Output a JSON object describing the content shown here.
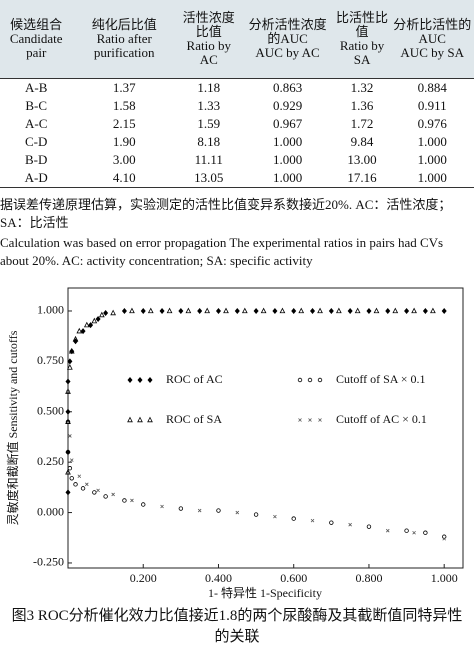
{
  "table": {
    "header": [
      {
        "zh": "候选组合",
        "en": "Candidate pair"
      },
      {
        "zh": "纯化后比值",
        "en": "Ratio after purification"
      },
      {
        "zh": "活性浓度比值",
        "en": "Ratio by AC"
      },
      {
        "zh": "分析活性浓度的AUC",
        "en": "AUC by AC"
      },
      {
        "zh": "比活性比值",
        "en": "Ratio by SA"
      },
      {
        "zh": "分析比活性的AUC",
        "en": "AUC by SA"
      }
    ],
    "rows": [
      [
        "A-B",
        "1.37",
        "1.18",
        "0.863",
        "1.32",
        "0.884"
      ],
      [
        "B-C",
        "1.58",
        "1.33",
        "0.929",
        "1.36",
        "0.911"
      ],
      [
        "A-C",
        "2.15",
        "1.59",
        "0.967",
        "1.72",
        "0.976"
      ],
      [
        "C-D",
        "1.90",
        "8.18",
        "1.000",
        "9.84",
        "1.000"
      ],
      [
        "B-D",
        "3.00",
        "11.11",
        "1.000",
        "13.00",
        "1.000"
      ],
      [
        "A-D",
        "4.10",
        "13.05",
        "1.000",
        "17.16",
        "1.000"
      ]
    ]
  },
  "footnote": [
    "据误差传递原理估算，实验测定的活性比值变异系数接近20%. AC：活性浓度；SA：比活性",
    "Calculation was based on error propagation The experimental ratios in pairs had CVs about 20%. AC: activity concentration; SA: specific activity"
  ],
  "chart_data": {
    "type": "scatter",
    "x_label": "1- 特异性 1-Specificity",
    "y_label": "灵敏度和截断值 Sensitivity and cutoffs",
    "xlim": [
      0,
      1.05
    ],
    "ylim": [
      -0.275,
      1.114
    ],
    "xticks": [
      {
        "value": 0.2,
        "label": "0.200"
      },
      {
        "value": 0.4,
        "label": "0.400"
      },
      {
        "value": 0.6,
        "label": "0.600"
      },
      {
        "value": 0.8,
        "label": "0.800"
      },
      {
        "value": 1,
        "label": "1.000"
      }
    ],
    "yticks": [
      {
        "value": -0.25,
        "label": "-0.250"
      },
      {
        "value": 0,
        "label": "0.000"
      },
      {
        "value": 0.25,
        "label": "0.250"
      },
      {
        "value": 0.5,
        "label": "0.500"
      },
      {
        "value": 0.75,
        "label": "0.750"
      },
      {
        "value": 1,
        "label": "1.000"
      }
    ],
    "legend": "inside-center",
    "series": [
      {
        "name": "ROC of AC",
        "color": "#000000",
        "marker": "diamond-filled",
        "x": [
          0,
          0,
          0,
          0,
          0.005,
          0.01,
          0.02,
          0.04,
          0.06,
          0.08,
          0.1,
          0.15,
          0.2,
          0.25,
          0.3,
          0.35,
          0.4,
          0.45,
          0.5,
          0.55,
          0.6,
          0.65,
          0.7,
          0.75,
          0.8,
          0.85,
          0.9,
          0.95,
          1.0
        ],
        "values": [
          0.1,
          0.3,
          0.5,
          0.65,
          0.75,
          0.8,
          0.85,
          0.9,
          0.93,
          0.96,
          0.99,
          1,
          1,
          1,
          1,
          1,
          1,
          1,
          1,
          1,
          1,
          1,
          1,
          1,
          1,
          1,
          1,
          1,
          1
        ]
      },
      {
        "name": "ROC of SA",
        "color": "#000000",
        "marker": "triangle-open",
        "x": [
          0,
          0,
          0,
          0.005,
          0.01,
          0.02,
          0.03,
          0.05,
          0.07,
          0.09,
          0.12,
          0.17,
          0.22,
          0.27,
          0.32,
          0.37,
          0.42,
          0.47,
          0.52,
          0.57,
          0.62,
          0.67,
          0.72,
          0.77,
          0.82,
          0.87,
          0.92,
          0.97
        ],
        "values": [
          0.2,
          0.45,
          0.6,
          0.72,
          0.8,
          0.86,
          0.9,
          0.93,
          0.95,
          0.98,
          0.99,
          1,
          1,
          1,
          1,
          1,
          1,
          1,
          1,
          1,
          1,
          1,
          1,
          1,
          1,
          1,
          1,
          1
        ]
      },
      {
        "name": "Cutoff of SA × 0.1",
        "color": "#000000",
        "marker": "circle-open",
        "x": [
          0,
          0,
          0.005,
          0.01,
          0.02,
          0.04,
          0.07,
          0.1,
          0.15,
          0.2,
          0.3,
          0.4,
          0.5,
          0.6,
          0.7,
          0.8,
          0.9,
          0.95,
          1.0
        ],
        "values": [
          0.45,
          0.3,
          0.22,
          0.17,
          0.14,
          0.12,
          0.1,
          0.08,
          0.06,
          0.04,
          0.02,
          0.01,
          -0.01,
          -0.03,
          -0.05,
          -0.07,
          -0.09,
          -0.1,
          -0.12
        ]
      },
      {
        "name": "Cutoff of AC × 0.1",
        "color": "#555555",
        "marker": "x",
        "x": [
          0,
          0.005,
          0.01,
          0.03,
          0.05,
          0.08,
          0.12,
          0.17,
          0.25,
          0.35,
          0.45,
          0.55,
          0.65,
          0.75,
          0.85,
          0.92,
          1.0
        ],
        "values": [
          0.6,
          0.38,
          0.26,
          0.18,
          0.14,
          0.11,
          0.09,
          0.06,
          0.03,
          0.01,
          0,
          -0.02,
          -0.04,
          -0.06,
          -0.09,
          -0.1,
          -0.13
        ]
      }
    ]
  },
  "figure_caption": "图3  ROC分析催化效力比值接近1.8的两个尿酸酶及其截断值同特异性的关联"
}
